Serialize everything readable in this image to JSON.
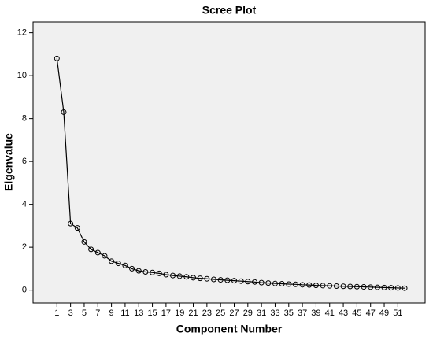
{
  "chart_data": {
    "type": "line",
    "title": "Scree Plot",
    "x_label": "Component Number",
    "y_label": "Eigenvalue",
    "x": [
      1,
      2,
      3,
      4,
      5,
      6,
      7,
      8,
      9,
      10,
      11,
      12,
      13,
      14,
      15,
      16,
      17,
      18,
      19,
      20,
      21,
      22,
      23,
      24,
      25,
      26,
      27,
      28,
      29,
      30,
      31,
      32,
      33,
      34,
      35,
      36,
      37,
      38,
      39,
      40,
      41,
      42,
      43,
      44,
      45,
      46,
      47,
      48,
      49,
      50,
      51,
      52
    ],
    "values": [
      10.8,
      8.3,
      3.1,
      2.9,
      2.25,
      1.9,
      1.75,
      1.6,
      1.35,
      1.25,
      1.15,
      1.0,
      0.9,
      0.85,
      0.82,
      0.78,
      0.72,
      0.68,
      0.65,
      0.62,
      0.58,
      0.55,
      0.53,
      0.5,
      0.48,
      0.46,
      0.44,
      0.42,
      0.4,
      0.38,
      0.35,
      0.33,
      0.31,
      0.3,
      0.28,
      0.27,
      0.25,
      0.24,
      0.22,
      0.21,
      0.2,
      0.19,
      0.18,
      0.17,
      0.16,
      0.15,
      0.14,
      0.13,
      0.12,
      0.11,
      0.1,
      0.09
    ],
    "color": "#000000",
    "xlim": [
      -2.5,
      55
    ],
    "ylim": [
      -0.6,
      12.5
    ],
    "xticks": [
      1,
      3,
      5,
      7,
      9,
      11,
      13,
      15,
      17,
      19,
      21,
      23,
      25,
      27,
      29,
      31,
      33,
      35,
      37,
      39,
      41,
      43,
      45,
      47,
      49,
      51
    ],
    "yticks": [
      0,
      2,
      4,
      6,
      8,
      10,
      12
    ]
  }
}
